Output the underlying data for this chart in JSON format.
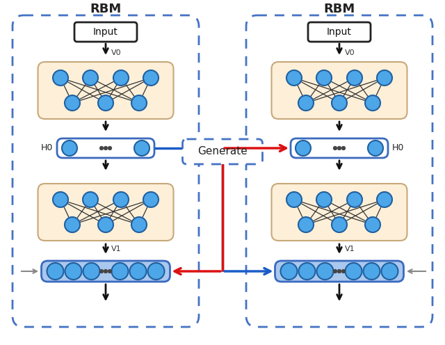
{
  "rbm_label": "RBM",
  "generate_label": "Generate",
  "input_label": "Input",
  "v0_label": "V0",
  "h0_label": "H0",
  "v1_label": "V1",
  "bg_color": "#ffffff",
  "rbm_dash_color": "#4472c4",
  "node_color": "#4da6e8",
  "node_edge_color": "#2060a0",
  "network_bg": "#fdefd8",
  "network_border": "#c8a87a",
  "blue_color": "#1a5cc8",
  "red_color": "#dd1111",
  "black_color": "#111111",
  "h0_border": "#3a6abf",
  "h0_bg": "#ffffff",
  "v1_bar_bg": "#aac8ee",
  "v1_bar_border": "#3a6abf",
  "input_border": "#222222",
  "input_bg": "#ffffff",
  "gen_border": "#4472c4",
  "gen_bg": "#ffffff"
}
